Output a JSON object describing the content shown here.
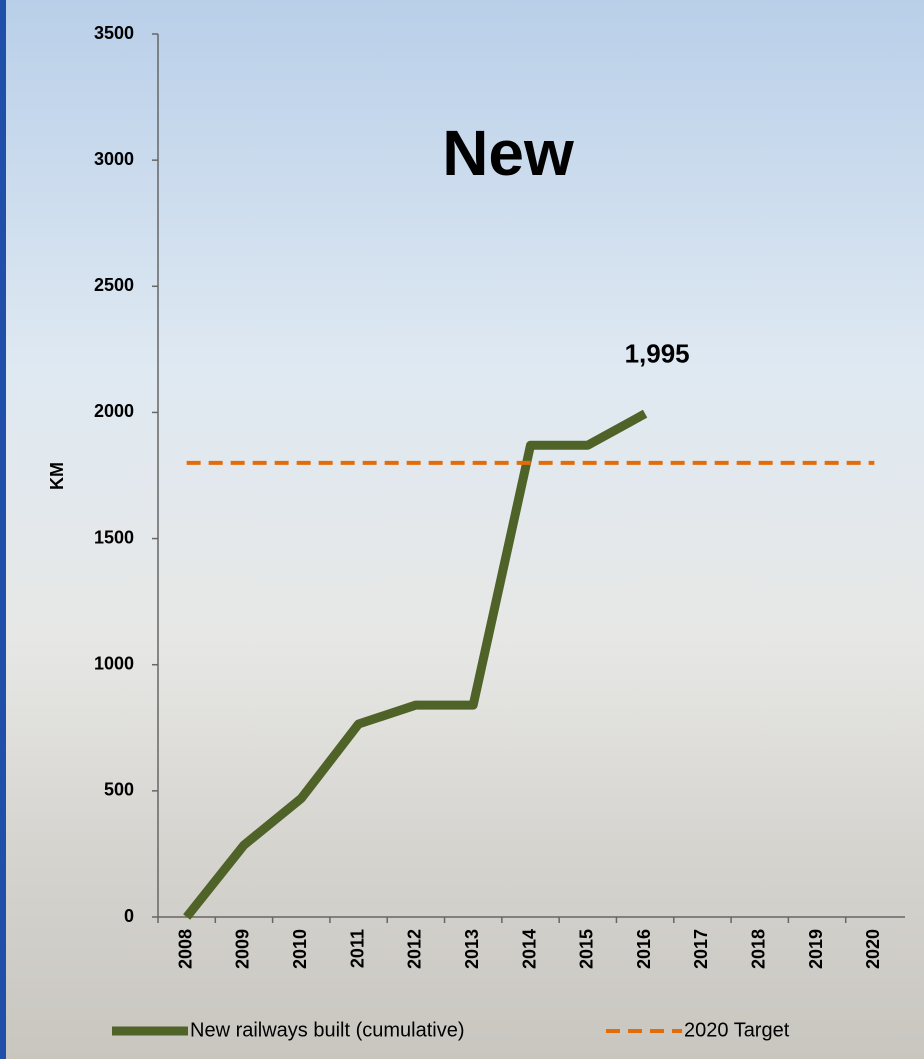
{
  "chart_data": {
    "type": "line",
    "title": "New",
    "y_label": "KM",
    "categories": [
      "2008",
      "2009",
      "2010",
      "2011",
      "2012",
      "2013",
      "2014",
      "2015",
      "2016",
      "2017",
      "2018",
      "2019",
      "2020"
    ],
    "series": [
      {
        "name": "New railways built (cumulative)",
        "color": "#4f6228",
        "dash": false,
        "values": [
          0,
          285,
          470,
          765,
          840,
          840,
          1870,
          1870,
          1995,
          null,
          null,
          null,
          null
        ],
        "value_labels": [
          null,
          null,
          null,
          null,
          null,
          null,
          null,
          null,
          "1,995",
          null,
          null,
          null,
          null
        ]
      },
      {
        "name": "2020 Target",
        "color": "#e36c0a",
        "dash": true,
        "values": [
          1800,
          1800,
          1800,
          1800,
          1800,
          1800,
          1800,
          1800,
          1800,
          1800,
          1800,
          1800,
          1800
        ]
      }
    ],
    "ylim": [
      0,
      3500
    ],
    "yticks": [
      0,
      500,
      1000,
      1500,
      2000,
      2500,
      3000,
      3500
    ]
  }
}
